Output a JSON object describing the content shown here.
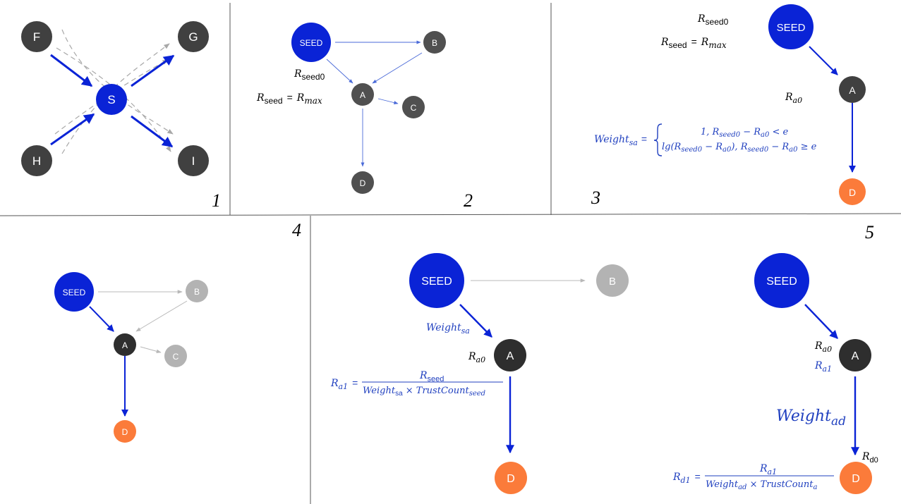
{
  "panels": [
    {
      "number": "1"
    },
    {
      "number": "2"
    },
    {
      "number": "3"
    },
    {
      "number": "4"
    },
    {
      "number": "5"
    }
  ],
  "colors": {
    "seed": "#0a23d6",
    "dark": "#404040",
    "grey": "#b3b3b3",
    "orange": "#fb7b3a",
    "formula": "#1f3fbf",
    "dashed": "#a8a8a8"
  },
  "p1": {
    "F": "F",
    "G": "G",
    "S": "S",
    "H": "H",
    "I": "I"
  },
  "p2": {
    "seed": "SEED",
    "B": "B",
    "A": "A",
    "C": "C",
    "D": "D",
    "r_seed0": "R",
    "r_seed0_sub": "seed0",
    "r_seed": "R",
    "r_seed_sub": "seed",
    "eq": "=",
    "r_max": "R",
    "r_max_sub": "max"
  },
  "p3": {
    "seed": "SEED",
    "A": "A",
    "D": "D",
    "r_seed0": "R",
    "r_seed0_sub": "seed0",
    "r_seed": "R",
    "r_seed_sub": "seed",
    "eq": "=",
    "r_max": "R",
    "r_max_sub": "max",
    "r_a0": "R",
    "r_a0_sub": "a0",
    "weight_lhs": "Weight",
    "weight_lhs_sub": "sa",
    "weight_eq": "=",
    "case1": "1, R",
    "case1_sub1": "seed0",
    "case1_mid": " − R",
    "case1_sub2": "a0",
    "case1_end": " < e",
    "case2": "lg(R",
    "case2_sub1": "seed0",
    "case2_mid": " − R",
    "case2_sub2": "a0",
    "case2_mid2": "), R",
    "case2_sub3": "seed0",
    "case2_mid3": " − R",
    "case2_sub4": "a0",
    "case2_end": " ≥ e"
  },
  "p4": {
    "seed": "SEED",
    "B": "B",
    "A": "A",
    "C": "C",
    "D": "D"
  },
  "p5": {
    "seed_left": "SEED",
    "B": "B",
    "A_left": "A",
    "D_left": "D",
    "weight_sa": "Weight",
    "weight_sa_sub": "sa",
    "r_a0_left": "R",
    "r_a0_left_sub": "a0",
    "ra1_lhs": "R",
    "ra1_lhs_sub": "a1",
    "ra1_eq": "=",
    "ra1_num": "R",
    "ra1_num_sub": "seed",
    "ra1_den1": "Weight",
    "ra1_den1_sub": "sa",
    "ra1_den_x": " × TrustCount",
    "ra1_den2_sub": "seed",
    "seed_right": "SEED",
    "A_right": "A",
    "D_right": "D",
    "r_a0_right": "R",
    "r_a0_right_sub": "a0",
    "r_a1_right": "R",
    "r_a1_right_sub": "a1",
    "weight_ad": "Weight",
    "weight_ad_sub": "ad",
    "r_d0": "R",
    "r_d0_sub": "d0",
    "rd1_lhs": "R",
    "rd1_lhs_sub": "d1",
    "rd1_eq": "=",
    "rd1_num": "R",
    "rd1_num_sub": "a1",
    "rd1_den1": "Weight",
    "rd1_den1_sub": "ad",
    "rd1_den_x": " × TrustCount",
    "rd1_den2_sub": "a"
  }
}
